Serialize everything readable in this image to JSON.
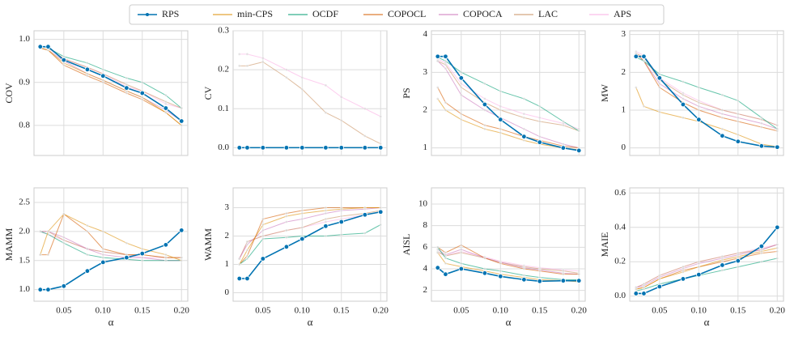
{
  "legend": [
    {
      "name": "RPS",
      "color": "#0173b2"
    },
    {
      "name": "min-CPS",
      "color": "#de8f05"
    },
    {
      "name": "OCDF",
      "color": "#029e73"
    },
    {
      "name": "COPOCL",
      "color": "#d55e00"
    },
    {
      "name": "COPOCA",
      "color": "#cc78bc"
    },
    {
      "name": "LAC",
      "color": "#ca9161"
    },
    {
      "name": "APS",
      "color": "#fbafe4"
    }
  ],
  "chart_data": [
    {
      "type": "line",
      "ylabel": "COV",
      "x": [
        0.02,
        0.03,
        0.05,
        0.08,
        0.1,
        0.13,
        0.15,
        0.18,
        0.2
      ],
      "xlim": [
        0.012,
        0.208
      ],
      "xticks": [
        0.05,
        0.1,
        0.15,
        0.2
      ],
      "ylim": [
        0.73,
        1.02
      ],
      "yticks": [
        0.8,
        0.9,
        {
          "value": 1.0,
          "label": "1.0"
        }
      ],
      "series": [
        {
          "values": [
            0.983,
            0.983,
            0.952,
            0.93,
            0.915,
            0.887,
            0.875,
            0.84,
            0.81
          ]
        },
        {
          "values": [
            0.98,
            0.975,
            0.945,
            0.92,
            0.905,
            0.88,
            0.865,
            0.83,
            0.8
          ]
        },
        {
          "values": [
            0.985,
            0.98,
            0.96,
            0.945,
            0.93,
            0.91,
            0.9,
            0.87,
            0.84
          ]
        },
        {
          "values": [
            0.98,
            0.975,
            0.94,
            0.915,
            0.9,
            0.875,
            0.86,
            0.83,
            0.8
          ]
        },
        {
          "values": [
            0.98,
            0.975,
            0.95,
            0.92,
            0.905,
            0.88,
            0.865,
            0.835,
            0.81
          ]
        },
        {
          "values": [
            0.985,
            0.98,
            0.955,
            0.935,
            0.92,
            0.895,
            0.88,
            0.855,
            0.84
          ]
        },
        {
          "values": [
            0.985,
            0.98,
            0.955,
            0.935,
            0.92,
            0.89,
            0.88,
            0.85,
            0.84
          ]
        }
      ]
    },
    {
      "type": "line",
      "ylabel": "CV",
      "x": [
        0.02,
        0.03,
        0.05,
        0.08,
        0.1,
        0.13,
        0.15,
        0.18,
        0.2
      ],
      "xlim": [
        0.012,
        0.208
      ],
      "xticks": [
        0.05,
        0.1,
        0.15,
        0.2
      ],
      "ylim": [
        -0.02,
        0.3
      ],
      "yticks": [
        {
          "value": 0,
          "label": "0.0"
        },
        0.1,
        0.2,
        0.3
      ],
      "series": [
        {
          "values": [
            0,
            0,
            0,
            0,
            0,
            0,
            0,
            0,
            0
          ]
        },
        {
          "values": [
            0,
            0,
            0,
            0,
            0,
            0,
            0,
            0,
            0
          ]
        },
        {
          "values": [
            0,
            0,
            0,
            0,
            0,
            0,
            0,
            0,
            0
          ]
        },
        {
          "values": [
            0,
            0,
            0,
            0,
            0,
            0,
            0,
            0,
            0
          ]
        },
        {
          "values": [
            0,
            0,
            0,
            0,
            0,
            0,
            0,
            0,
            0
          ]
        },
        {
          "values": [
            0.21,
            0.21,
            0.22,
            0.18,
            0.15,
            0.09,
            0.07,
            0.03,
            0.01
          ]
        },
        {
          "values": [
            0.24,
            0.24,
            0.23,
            0.2,
            0.18,
            0.16,
            0.13,
            0.1,
            0.08
          ]
        }
      ]
    },
    {
      "type": "line",
      "ylabel": "PS",
      "x": [
        0.02,
        0.03,
        0.05,
        0.08,
        0.1,
        0.13,
        0.15,
        0.18,
        0.2
      ],
      "xlim": [
        0.012,
        0.208
      ],
      "xticks": [
        0.05,
        0.1,
        0.15,
        0.2
      ],
      "ylim": [
        0.8,
        4.1
      ],
      "yticks": [
        1,
        2,
        3,
        4
      ],
      "series": [
        {
          "values": [
            3.42,
            3.42,
            2.85,
            2.15,
            1.75,
            1.3,
            1.15,
            1.0,
            0.93
          ]
        },
        {
          "values": [
            2.3,
            2.0,
            1.75,
            1.5,
            1.4,
            1.2,
            1.1,
            1.0,
            0.95
          ]
        },
        {
          "values": [
            3.4,
            3.3,
            3.0,
            2.7,
            2.5,
            2.3,
            2.1,
            1.7,
            1.45
          ]
        },
        {
          "values": [
            2.6,
            2.2,
            1.9,
            1.6,
            1.5,
            1.3,
            1.2,
            1.05,
            1.0
          ]
        },
        {
          "values": [
            3.3,
            3.1,
            2.4,
            2.0,
            1.8,
            1.5,
            1.3,
            1.1,
            1.0
          ]
        },
        {
          "values": [
            3.3,
            3.2,
            2.6,
            2.2,
            2.0,
            1.8,
            1.7,
            1.6,
            1.45
          ]
        },
        {
          "values": [
            3.35,
            3.25,
            2.7,
            2.3,
            2.1,
            1.9,
            1.8,
            1.65,
            1.5
          ]
        }
      ]
    },
    {
      "type": "line",
      "ylabel": "MW",
      "x": [
        0.02,
        0.03,
        0.05,
        0.08,
        0.1,
        0.13,
        0.15,
        0.18,
        0.2
      ],
      "xlim": [
        0.012,
        0.208
      ],
      "xticks": [
        0.05,
        0.1,
        0.15,
        0.2
      ],
      "ylim": [
        -0.2,
        3.1
      ],
      "yticks": [
        0,
        1,
        2,
        3
      ],
      "series": [
        {
          "values": [
            2.42,
            2.42,
            1.85,
            1.15,
            0.75,
            0.32,
            0.17,
            0.05,
            0.02
          ]
        },
        {
          "values": [
            1.6,
            1.1,
            0.95,
            0.8,
            0.7,
            0.5,
            0.35,
            0.1,
            0.03
          ]
        },
        {
          "values": [
            2.4,
            2.3,
            1.95,
            1.75,
            1.6,
            1.4,
            1.25,
            0.8,
            0.5
          ]
        },
        {
          "values": [
            2.5,
            2.3,
            1.6,
            1.2,
            1.0,
            0.8,
            0.7,
            0.55,
            0.45
          ]
        },
        {
          "values": [
            2.5,
            2.3,
            1.7,
            1.3,
            1.1,
            0.9,
            0.8,
            0.65,
            0.5
          ]
        },
        {
          "values": [
            2.5,
            2.4,
            1.8,
            1.4,
            1.2,
            1.0,
            0.9,
            0.75,
            0.6
          ]
        },
        {
          "values": [
            2.55,
            2.45,
            1.85,
            1.45,
            1.25,
            1.0,
            0.9,
            0.75,
            0.6
          ]
        }
      ]
    },
    {
      "type": "line",
      "ylabel": "MAMM",
      "xlabel": "α",
      "x": [
        0.02,
        0.03,
        0.05,
        0.08,
        0.1,
        0.13,
        0.15,
        0.18,
        0.2
      ],
      "xlim": [
        0.012,
        0.208
      ],
      "xticks": [
        0.05,
        {
          "value": 0.1,
          "label": "0.10"
        },
        0.15,
        {
          "value": 0.2,
          "label": "0.20"
        }
      ],
      "ylim": [
        0.8,
        2.75
      ],
      "yticks": [
        {
          "value": 1,
          "label": "1.0"
        },
        1.5,
        {
          "value": 2,
          "label": "2.0"
        },
        2.5
      ],
      "series": [
        {
          "values": [
            1.0,
            1.0,
            1.06,
            1.32,
            1.47,
            1.55,
            1.62,
            1.77,
            2.02
          ]
        },
        {
          "values": [
            1.6,
            2.0,
            2.3,
            2.1,
            2.0,
            1.8,
            1.7,
            1.6,
            1.5
          ]
        },
        {
          "values": [
            2.0,
            1.95,
            1.8,
            1.6,
            1.55,
            1.52,
            1.5,
            1.5,
            1.5
          ]
        },
        {
          "values": [
            1.6,
            1.6,
            2.3,
            2.0,
            1.7,
            1.6,
            1.6,
            1.55,
            1.55
          ]
        },
        {
          "values": [
            2.0,
            2.0,
            1.9,
            1.7,
            1.6,
            1.55,
            1.55,
            1.5,
            1.5
          ]
        },
        {
          "values": [
            2.0,
            2.0,
            1.85,
            1.7,
            1.65,
            1.6,
            1.6,
            1.55,
            1.55
          ]
        },
        {
          "values": [
            2.0,
            1.95,
            1.85,
            1.7,
            1.65,
            1.6,
            1.55,
            1.55,
            1.55
          ]
        }
      ]
    },
    {
      "type": "line",
      "ylabel": "WAMM",
      "xlabel": "α",
      "x": [
        0.02,
        0.03,
        0.05,
        0.08,
        0.1,
        0.13,
        0.15,
        0.18,
        0.2
      ],
      "xlim": [
        0.012,
        0.208
      ],
      "xticks": [
        0.05,
        {
          "value": 0.1,
          "label": "0.10"
        },
        0.15,
        {
          "value": 0.2,
          "label": "0.20"
        }
      ],
      "ylim": [
        -0.3,
        3.7
      ],
      "yticks": [
        0,
        1,
        2,
        3
      ],
      "series": [
        {
          "values": [
            0.5,
            0.5,
            1.2,
            1.62,
            1.9,
            2.35,
            2.5,
            2.75,
            2.85
          ]
        },
        {
          "values": [
            1.0,
            1.5,
            2.4,
            2.7,
            2.8,
            2.9,
            2.95,
            3.0,
            3.0
          ]
        },
        {
          "values": [
            1.0,
            1.2,
            1.9,
            1.95,
            2.0,
            2.0,
            2.05,
            2.1,
            2.4
          ]
        },
        {
          "values": [
            1.0,
            1.3,
            2.6,
            2.8,
            2.9,
            3.0,
            3.0,
            3.0,
            3.0
          ]
        },
        {
          "values": [
            1.2,
            1.7,
            2.2,
            2.5,
            2.6,
            2.8,
            2.9,
            2.95,
            3.0
          ]
        },
        {
          "values": [
            1.2,
            1.8,
            2.0,
            2.2,
            2.3,
            2.6,
            2.7,
            2.8,
            2.9
          ]
        },
        {
          "values": [
            1.2,
            1.8,
            2.0,
            2.2,
            2.3,
            2.5,
            2.6,
            2.75,
            2.85
          ]
        }
      ]
    },
    {
      "type": "line",
      "ylabel": "AISL",
      "xlabel": "α",
      "x": [
        0.02,
        0.03,
        0.05,
        0.08,
        0.1,
        0.13,
        0.15,
        0.18,
        0.2
      ],
      "xlim": [
        0.012,
        0.208
      ],
      "xticks": [
        0.05,
        {
          "value": 0.1,
          "label": "0.10"
        },
        0.15,
        {
          "value": 0.2,
          "label": "0.20"
        }
      ],
      "ylim": [
        1,
        11.5
      ],
      "yticks": [
        2,
        4,
        6,
        8,
        10
      ],
      "series": [
        {
          "values": [
            4.1,
            3.5,
            4.0,
            3.6,
            3.3,
            3.0,
            2.85,
            2.9,
            2.9
          ]
        },
        {
          "values": [
            5.5,
            4.5,
            4.2,
            3.8,
            3.5,
            3.2,
            3.0,
            2.9,
            2.8
          ]
        },
        {
          "values": [
            6.0,
            5.0,
            4.5,
            4.0,
            3.8,
            3.4,
            3.2,
            3.0,
            3.0
          ]
        },
        {
          "values": [
            6.0,
            5.5,
            6.2,
            5.0,
            4.5,
            4.0,
            3.8,
            3.5,
            3.5
          ]
        },
        {
          "values": [
            5.8,
            5.3,
            5.8,
            5.0,
            4.6,
            4.1,
            3.9,
            3.6,
            3.5
          ]
        },
        {
          "values": [
            5.6,
            5.2,
            5.5,
            5.0,
            4.6,
            4.2,
            4.0,
            3.8,
            3.6
          ]
        },
        {
          "values": [
            5.5,
            5.2,
            5.6,
            5.1,
            4.7,
            4.3,
            4.1,
            3.9,
            3.8
          ]
        }
      ]
    },
    {
      "type": "line",
      "ylabel": "MAIE",
      "xlabel": "α",
      "x": [
        0.02,
        0.03,
        0.05,
        0.08,
        0.1,
        0.13,
        0.15,
        0.18,
        0.2
      ],
      "xlim": [
        0.012,
        0.208
      ],
      "xticks": [
        0.05,
        {
          "value": 0.1,
          "label": "0.10"
        },
        0.15,
        {
          "value": 0.2,
          "label": "0.20"
        }
      ],
      "ylim": [
        -0.03,
        0.63
      ],
      "yticks": [
        {
          "value": 0,
          "label": "0.0"
        },
        0.2,
        0.4,
        0.6
      ],
      "series": [
        {
          "values": [
            0.015,
            0.015,
            0.055,
            0.1,
            0.125,
            0.18,
            0.205,
            0.29,
            0.4
          ]
        },
        {
          "values": [
            0.04,
            0.05,
            0.1,
            0.14,
            0.17,
            0.21,
            0.23,
            0.26,
            0.28
          ]
        },
        {
          "values": [
            0.03,
            0.04,
            0.07,
            0.1,
            0.12,
            0.15,
            0.17,
            0.2,
            0.22
          ]
        },
        {
          "values": [
            0.04,
            0.05,
            0.1,
            0.15,
            0.17,
            0.2,
            0.22,
            0.25,
            0.26
          ]
        },
        {
          "values": [
            0.05,
            0.06,
            0.11,
            0.16,
            0.19,
            0.22,
            0.24,
            0.27,
            0.3
          ]
        },
        {
          "values": [
            0.05,
            0.07,
            0.12,
            0.17,
            0.2,
            0.23,
            0.25,
            0.27,
            0.3
          ]
        },
        {
          "values": [
            0.05,
            0.07,
            0.12,
            0.17,
            0.2,
            0.23,
            0.25,
            0.28,
            0.3
          ]
        }
      ]
    }
  ]
}
